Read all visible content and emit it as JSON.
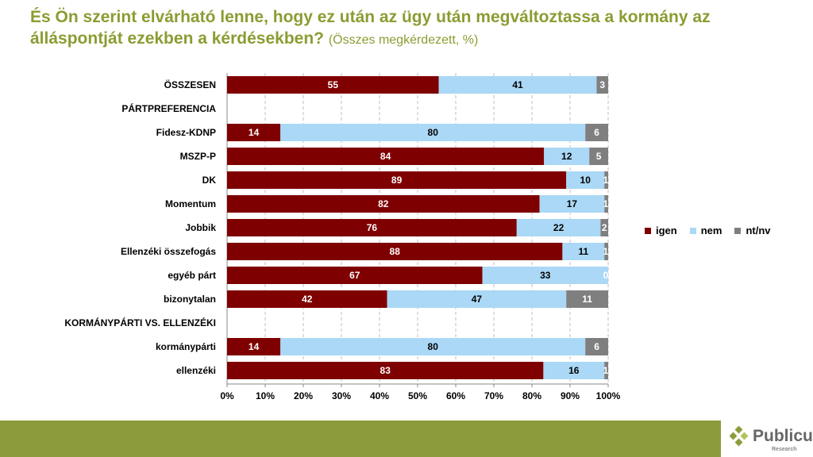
{
  "title": {
    "main": "És Ön szerint elvárható lenne, hogy ez után az ügy után megváltoztassa a kormány az álláspontját ezekben a kérdésekben?",
    "sub": "(Összes megkérdezett, %)"
  },
  "colors": {
    "igen": "#7f0000",
    "nem": "#aad8f6",
    "ntnv": "#7f7f7f",
    "title": "#8c9c32",
    "footer": "#8c9c3c"
  },
  "chart_data": {
    "type": "bar",
    "orientation": "horizontal",
    "stacked": true,
    "categories": [
      "ÖSSZESEN",
      "PÁRTPREFERENCIA",
      "Fidesz-KDNP",
      "MSZP-P",
      "DK",
      "Momentum",
      "Jobbik",
      "Ellenzéki összefogás",
      "egyéb párt",
      "bizonytalan",
      "KORMÁNYPÁRTI VS. ELLENZÉKI",
      "kormánypárti",
      "ellenzéki"
    ],
    "headers": [
      "PÁRTPREFERENCIA",
      "KORMÁNYPÁRTI VS. ELLENZÉKI"
    ],
    "series": [
      {
        "name": "igen",
        "values": [
          55,
          null,
          14,
          84,
          89,
          82,
          76,
          88,
          67,
          42,
          null,
          14,
          83
        ]
      },
      {
        "name": "nem",
        "values": [
          41,
          null,
          80,
          12,
          10,
          17,
          22,
          11,
          33,
          47,
          null,
          80,
          16
        ]
      },
      {
        "name": "nt/nv",
        "values": [
          3,
          null,
          6,
          5,
          1,
          1,
          2,
          1,
          0,
          11,
          null,
          6,
          1
        ]
      }
    ],
    "xticks": [
      "0%",
      "10%",
      "20%",
      "30%",
      "40%",
      "50%",
      "60%",
      "70%",
      "80%",
      "90%",
      "100%"
    ],
    "xlim": [
      0,
      100
    ],
    "grid": "vertical-dashed",
    "legend": "right"
  },
  "logo": {
    "name": "Publicus",
    "tagline": "Research"
  }
}
